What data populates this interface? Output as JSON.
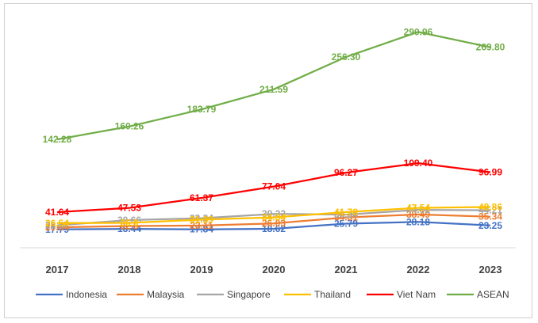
{
  "chart_data": {
    "type": "line",
    "x": [
      "2017",
      "2018",
      "2019",
      "2020",
      "2021",
      "2022",
      "2023"
    ],
    "series": [
      {
        "name": "Indonesia",
        "color": "#4472C4",
        "values": [
          17.79,
          18.44,
          17.84,
          18.62,
          25.79,
          28.18,
          23.25
        ],
        "labels": [
          "17.79",
          "18.44",
          "17.84",
          "18.62",
          "25.79",
          "28.18",
          "23.25"
        ]
      },
      {
        "name": "Malaysia",
        "color": "#ED7D31",
        "values": [
          20.64,
          22.5,
          23.11,
          26.03,
          34.31,
          38.49,
          35.34
        ],
        "labels": [
          "20.64",
          "22.5",
          "23.11",
          "26.03",
          "34.31",
          "38.49",
          "35.34"
        ]
      },
      {
        "name": "Singapore",
        "color": "#A5A5A5",
        "values": [
          23.47,
          30.66,
          33.24,
          39.22,
          38.24,
          44.81,
          44.21
        ],
        "labels": [
          "23.47",
          "30.66",
          "33.24",
          "39.22",
          "38.24",
          "44.81",
          "44.21"
        ]
      },
      {
        "name": "Thailand",
        "color": "#FFC000",
        "values": [
          26.54,
          26.9,
          31.39,
          34.34,
          41.78,
          47.54,
          48.86
        ],
        "labels": [
          "26.54",
          "26.9",
          "31.39",
          "34.34",
          "41.78",
          "47.54",
          "48.86"
        ]
      },
      {
        "name": "Viet Nam",
        "color": "#FF0000",
        "values": [
          41.64,
          47.53,
          61.37,
          77.04,
          96.27,
          109.4,
          96.99
        ],
        "labels": [
          "41.64",
          "47.53",
          "61.37",
          "77.04",
          "96.27",
          "109.40",
          "96.99"
        ]
      },
      {
        "name": "ASEAN",
        "color": "#70AD47",
        "values": [
          142.28,
          160.26,
          183.79,
          211.59,
          256.3,
          290.96,
          269.8
        ],
        "labels": [
          "142.28",
          "160.26",
          "183.79",
          "211.59",
          "256.30",
          "290.96",
          "269.80"
        ]
      }
    ],
    "title": "",
    "xlabel": "",
    "ylabel": "",
    "ylim": [
      0,
      300
    ],
    "grid": false,
    "legend": "bottom"
  }
}
